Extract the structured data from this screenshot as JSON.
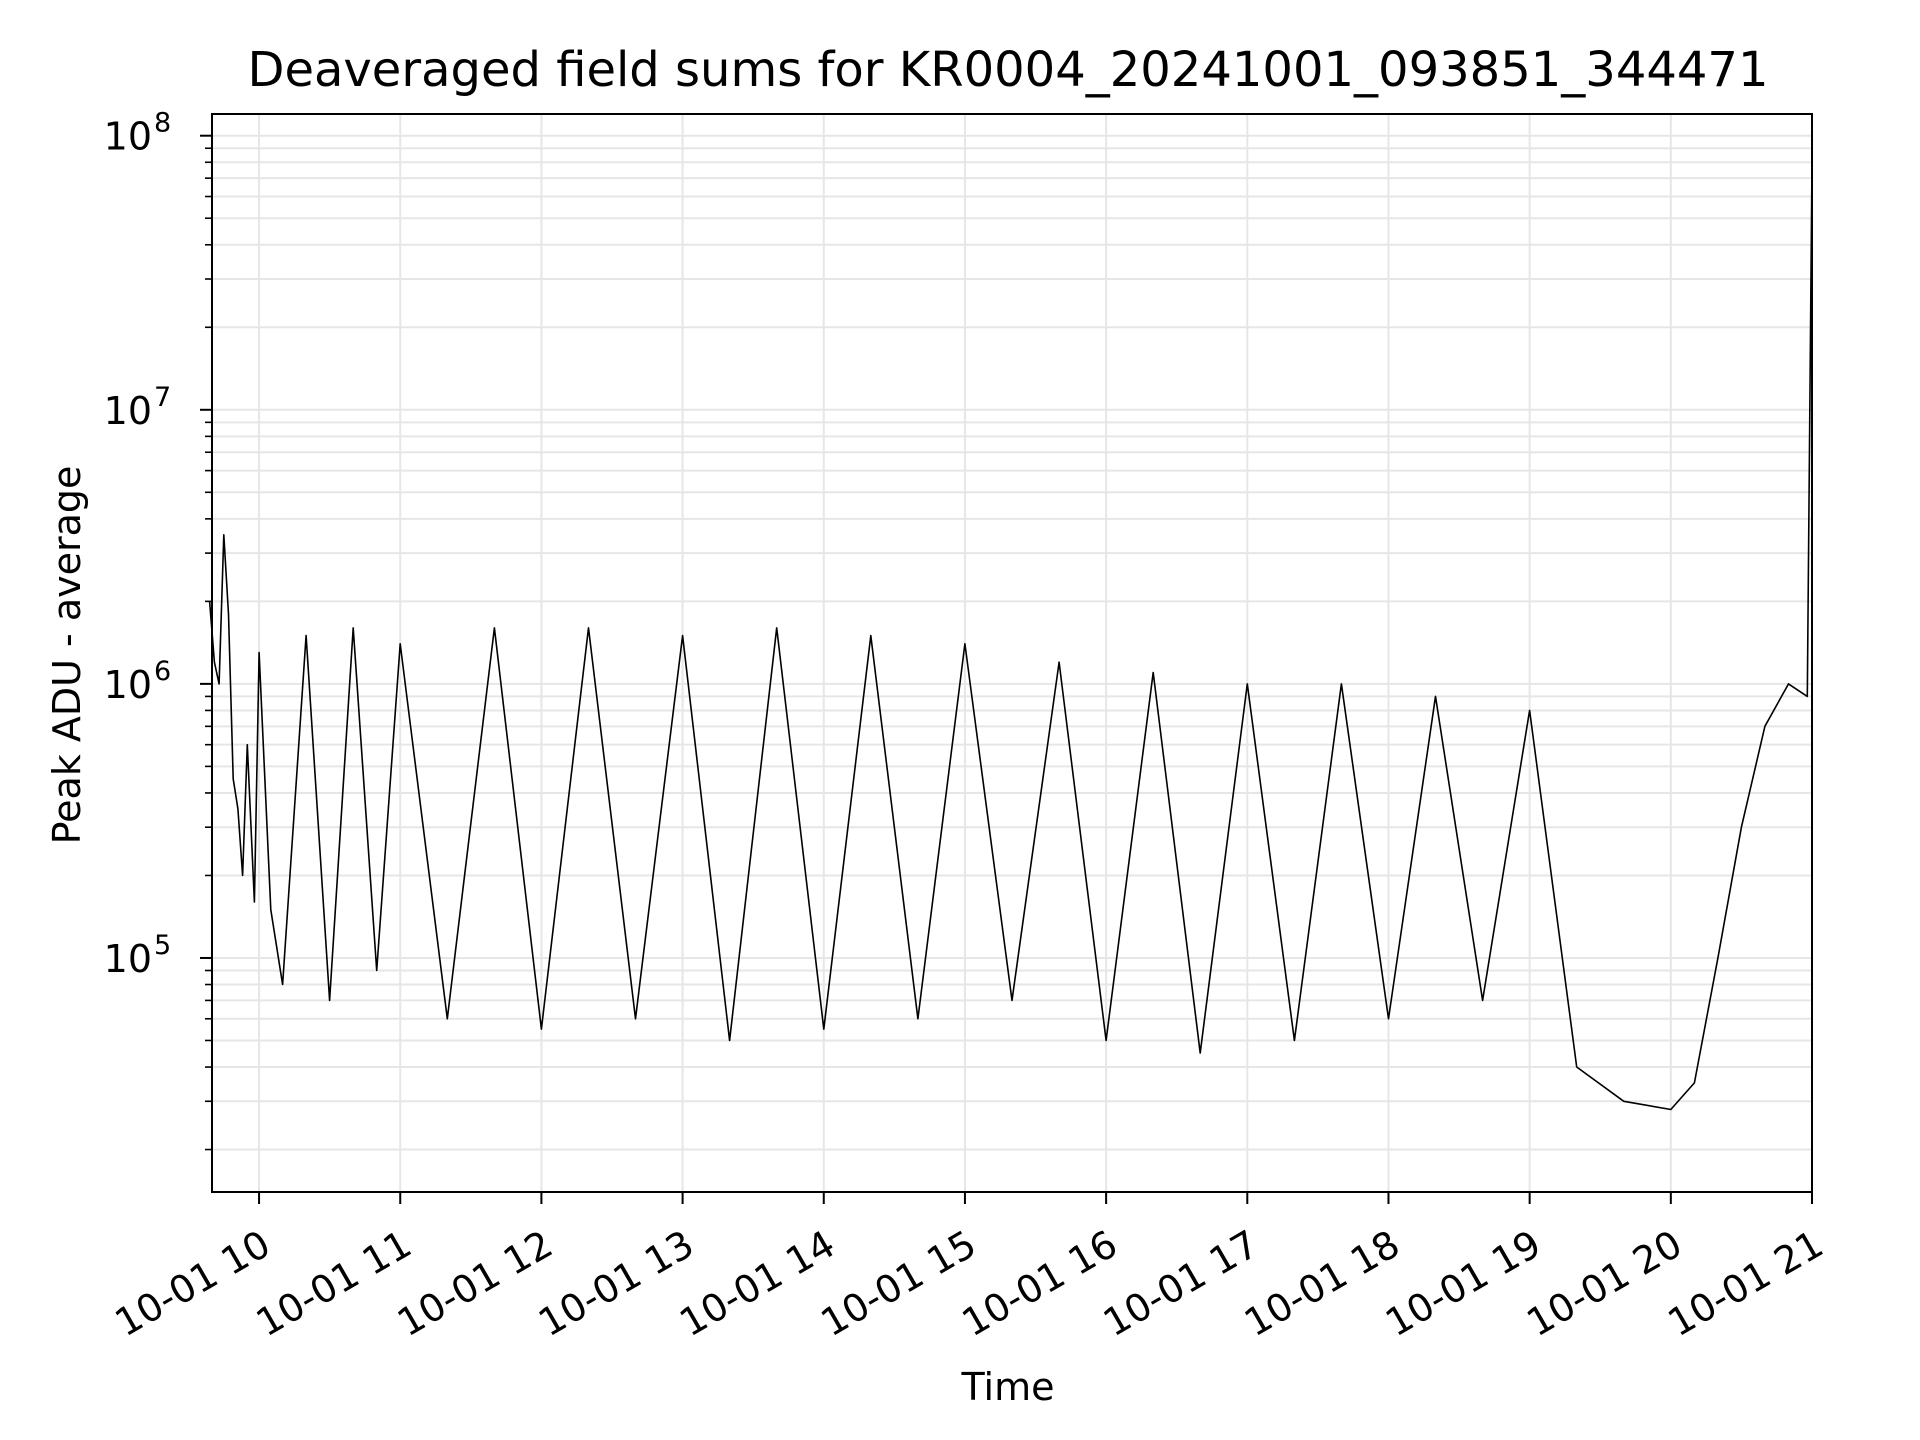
{
  "chart_data": {
    "type": "line",
    "title": "Deaveraged field sums for KR0004_20241001_093851_344471",
    "xlabel": "Time",
    "ylabel": "Peak ADU - average",
    "xlim": [
      "2024-10-01 09:40",
      "2024-10-01 21:00"
    ],
    "ylim": [
      14000,
      120000000
    ],
    "yscale": "log",
    "grid": true,
    "line_color": "#000000",
    "grid_color": "#e6e6e6",
    "x_ticks": [
      {
        "value": "2024-10-01 10:00",
        "label": "10-01 10"
      },
      {
        "value": "2024-10-01 11:00",
        "label": "10-01 11"
      },
      {
        "value": "2024-10-01 12:00",
        "label": "10-01 12"
      },
      {
        "value": "2024-10-01 13:00",
        "label": "10-01 13"
      },
      {
        "value": "2024-10-01 14:00",
        "label": "10-01 14"
      },
      {
        "value": "2024-10-01 15:00",
        "label": "10-01 15"
      },
      {
        "value": "2024-10-01 16:00",
        "label": "10-01 16"
      },
      {
        "value": "2024-10-01 17:00",
        "label": "10-01 17"
      },
      {
        "value": "2024-10-01 18:00",
        "label": "10-01 18"
      },
      {
        "value": "2024-10-01 19:00",
        "label": "10-01 19"
      },
      {
        "value": "2024-10-01 20:00",
        "label": "10-01 20"
      },
      {
        "value": "2024-10-01 21:00",
        "label": "10-01 21"
      }
    ],
    "y_ticks": [
      {
        "value": 100000,
        "base": "10",
        "exp": "5"
      },
      {
        "value": 1000000,
        "base": "10",
        "exp": "6"
      },
      {
        "value": 10000000,
        "base": "10",
        "exp": "7"
      },
      {
        "value": 100000000,
        "base": "10",
        "exp": "8"
      }
    ],
    "series": [
      {
        "x": [
          "2024-10-01 09:39",
          "2024-10-01 09:41",
          "2024-10-01 09:43",
          "2024-10-01 09:45",
          "2024-10-01 09:47",
          "2024-10-01 09:49",
          "2024-10-01 09:51",
          "2024-10-01 09:53",
          "2024-10-01 09:55",
          "2024-10-01 09:58",
          "2024-10-01 10:00",
          "2024-10-01 10:05",
          "2024-10-01 10:10",
          "2024-10-01 10:20",
          "2024-10-01 10:30",
          "2024-10-01 10:40",
          "2024-10-01 10:50",
          "2024-10-01 11:00",
          "2024-10-01 11:20",
          "2024-10-01 11:40",
          "2024-10-01 12:00",
          "2024-10-01 12:20",
          "2024-10-01 12:40",
          "2024-10-01 13:00",
          "2024-10-01 13:20",
          "2024-10-01 13:40",
          "2024-10-01 14:00",
          "2024-10-01 14:20",
          "2024-10-01 14:40",
          "2024-10-01 15:00",
          "2024-10-01 15:20",
          "2024-10-01 15:40",
          "2024-10-01 16:00",
          "2024-10-01 16:20",
          "2024-10-01 16:40",
          "2024-10-01 17:00",
          "2024-10-01 17:20",
          "2024-10-01 17:40",
          "2024-10-01 18:00",
          "2024-10-01 18:20",
          "2024-10-01 18:40",
          "2024-10-01 19:00",
          "2024-10-01 19:20",
          "2024-10-01 19:40",
          "2024-10-01 20:00",
          "2024-10-01 20:10",
          "2024-10-01 20:20",
          "2024-10-01 20:30",
          "2024-10-01 20:40",
          "2024-10-01 20:50",
          "2024-10-01 20:58",
          "2024-10-01 21:00"
        ],
        "y": [
          2000000,
          1200000,
          1000000,
          3500000,
          1800000,
          450000,
          350000,
          200000,
          600000,
          160000,
          1300000,
          150000,
          80000,
          1500000,
          70000,
          1600000,
          90000,
          1400000,
          60000,
          1600000,
          55000,
          1600000,
          60000,
          1500000,
          50000,
          1600000,
          55000,
          1500000,
          60000,
          1400000,
          70000,
          1200000,
          50000,
          1100000,
          45000,
          1000000,
          50000,
          1000000,
          60000,
          900000,
          70000,
          800000,
          40000,
          30000,
          28000,
          35000,
          100000,
          300000,
          700000,
          1000000,
          900000,
          80000000
        ]
      }
    ]
  }
}
